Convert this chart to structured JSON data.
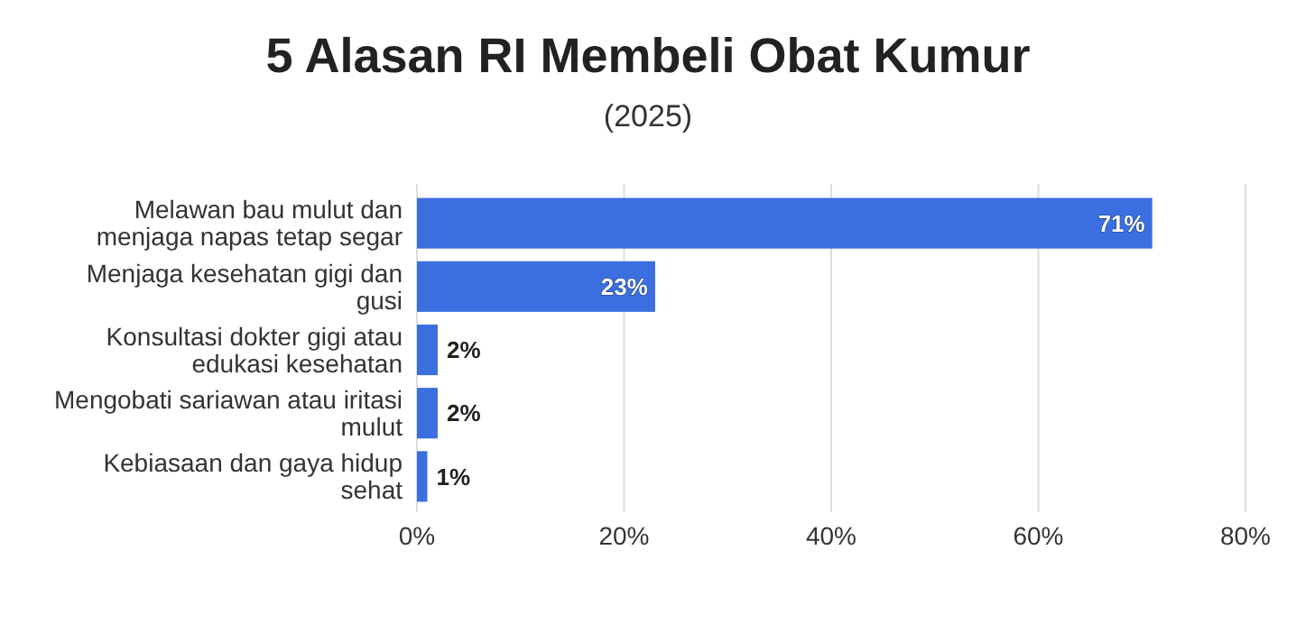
{
  "chart_data": {
    "type": "bar",
    "orientation": "horizontal",
    "title": "5 Alasan RI Membeli Obat Kumur",
    "subtitle": "(2025)",
    "categories": [
      "Melawan bau mulut dan menjaga napas tetap segar",
      "Menjaga kesehatan gigi dan gusi",
      "Konsultasi dokter gigi atau edukasi kesehatan",
      "Mengobati sariawan atau iritasi mulut",
      "Kebiasaan dan gaya hidup sehat"
    ],
    "values": [
      71,
      23,
      2,
      2,
      1
    ],
    "color": "#3b6fe0",
    "value_labels": [
      "71%",
      "23%",
      "2%",
      "2%",
      "1%"
    ],
    "xlim": [
      0,
      80
    ],
    "xticks": [
      {
        "value": 0,
        "label": "0%"
      },
      {
        "value": 20,
        "label": "20%"
      },
      {
        "value": 40,
        "label": "40%"
      },
      {
        "value": 60,
        "label": "60%"
      },
      {
        "value": 80,
        "label": "80%"
      }
    ],
    "grid": "x"
  }
}
